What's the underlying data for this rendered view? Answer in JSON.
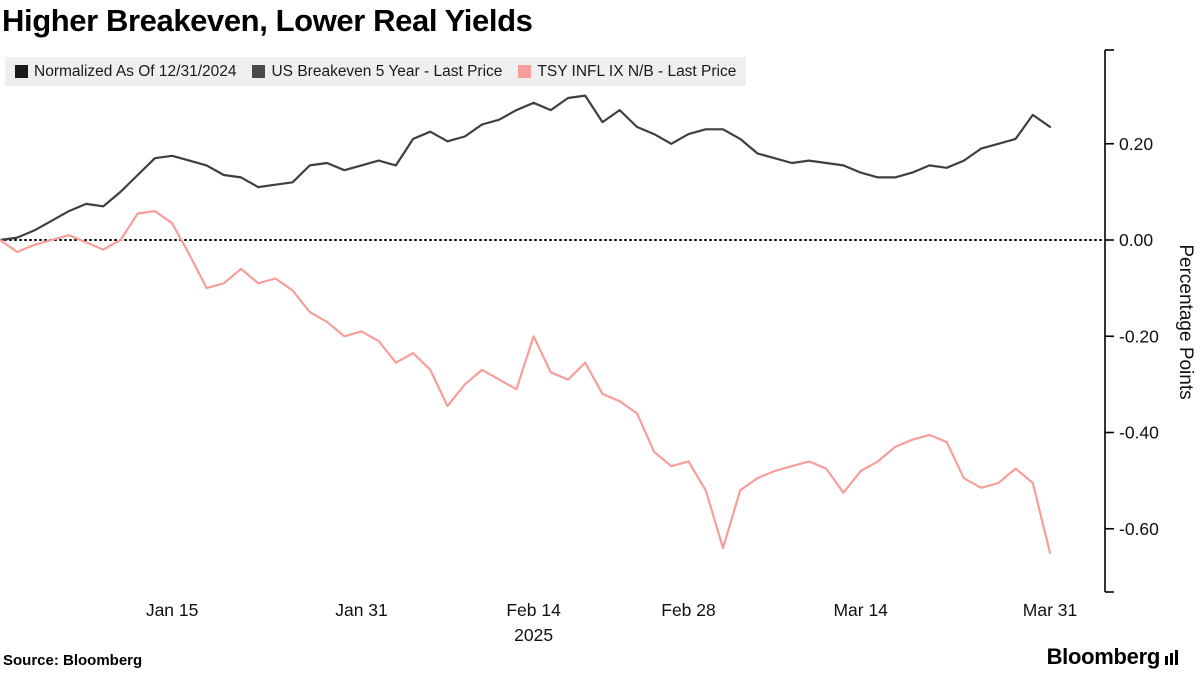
{
  "title": "Higher Breakeven, Lower Real Yields",
  "legend": {
    "background": "#efefef",
    "items": [
      {
        "label": "Normalized As Of 12/31/2024",
        "color": "#1a1a1a"
      },
      {
        "label": "US Breakeven 5 Year - Last Price",
        "color": "#4a4a4a"
      },
      {
        "label": "TSY INFL IX N/B - Last Price",
        "color": "#f79e9b"
      }
    ]
  },
  "footer": {
    "source": "Source: Bloomberg",
    "brand": "Bloomberg"
  },
  "chart_data": {
    "type": "line",
    "title": "Higher Breakeven, Lower Real Yields",
    "ylabel": "Percentage Points",
    "ylim": [
      -0.73,
      0.4
    ],
    "y_ticks": [
      0.2,
      0.0,
      -0.2,
      -0.4,
      -0.6
    ],
    "zero_line": true,
    "grid": false,
    "legend_position": "top",
    "x_year_label": "2025",
    "x_tick_labels": [
      "Jan 15",
      "Jan 31",
      "Feb 14",
      "Feb 28",
      "Mar 14",
      "Mar 31"
    ],
    "x_tick_indices": [
      10,
      21,
      31,
      40,
      50,
      61
    ],
    "x": [
      "Dec 31",
      "Jan 2",
      "Jan 3",
      "Jan 6",
      "Jan 7",
      "Jan 8",
      "Jan 9",
      "Jan 10",
      "Jan 13",
      "Jan 14",
      "Jan 15",
      "Jan 16",
      "Jan 17",
      "Jan 21",
      "Jan 22",
      "Jan 23",
      "Jan 24",
      "Jan 27",
      "Jan 28",
      "Jan 29",
      "Jan 30",
      "Jan 31",
      "Feb 3",
      "Feb 4",
      "Feb 5",
      "Feb 6",
      "Feb 7",
      "Feb 10",
      "Feb 11",
      "Feb 12",
      "Feb 13",
      "Feb 14",
      "Feb 18",
      "Feb 19",
      "Feb 20",
      "Feb 21",
      "Feb 24",
      "Feb 25",
      "Feb 26",
      "Feb 27",
      "Feb 28",
      "Mar 3",
      "Mar 4",
      "Mar 5",
      "Mar 6",
      "Mar 7",
      "Mar 10",
      "Mar 11",
      "Mar 12",
      "Mar 13",
      "Mar 14",
      "Mar 17",
      "Mar 18",
      "Mar 19",
      "Mar 20",
      "Mar 21",
      "Mar 24",
      "Mar 25",
      "Mar 26",
      "Mar 27",
      "Mar 28",
      "Mar 31"
    ],
    "series": [
      {
        "name": "US Breakeven 5 Year - Last Price",
        "color": "#3f3f3f",
        "values": [
          0.0,
          0.005,
          0.02,
          0.04,
          0.06,
          0.075,
          0.07,
          0.1,
          0.135,
          0.17,
          0.175,
          0.165,
          0.155,
          0.135,
          0.13,
          0.11,
          0.115,
          0.12,
          0.155,
          0.16,
          0.145,
          0.155,
          0.165,
          0.155,
          0.21,
          0.225,
          0.205,
          0.215,
          0.24,
          0.25,
          0.27,
          0.285,
          0.27,
          0.295,
          0.3,
          0.245,
          0.27,
          0.235,
          0.22,
          0.2,
          0.22,
          0.23,
          0.23,
          0.21,
          0.18,
          0.17,
          0.16,
          0.165,
          0.16,
          0.155,
          0.14,
          0.13,
          0.13,
          0.14,
          0.155,
          0.15,
          0.165,
          0.19,
          0.2,
          0.21,
          0.26,
          0.235
        ]
      },
      {
        "name": "TSY INFL IX N/B - Last Price",
        "color": "#f79e9b",
        "values": [
          0.0,
          -0.025,
          -0.01,
          0.0,
          0.01,
          -0.005,
          -0.02,
          0.0,
          0.055,
          0.06,
          0.035,
          -0.03,
          -0.1,
          -0.09,
          -0.06,
          -0.09,
          -0.08,
          -0.105,
          -0.15,
          -0.17,
          -0.2,
          -0.19,
          -0.21,
          -0.255,
          -0.235,
          -0.27,
          -0.345,
          -0.3,
          -0.27,
          -0.29,
          -0.31,
          -0.2,
          -0.275,
          -0.29,
          -0.255,
          -0.32,
          -0.335,
          -0.36,
          -0.44,
          -0.47,
          -0.46,
          -0.52,
          -0.64,
          -0.52,
          -0.495,
          -0.48,
          -0.47,
          -0.46,
          -0.475,
          -0.525,
          -0.48,
          -0.46,
          -0.43,
          -0.415,
          -0.405,
          -0.42,
          -0.495,
          -0.515,
          -0.505,
          -0.475,
          -0.505,
          -0.65
        ]
      }
    ]
  }
}
